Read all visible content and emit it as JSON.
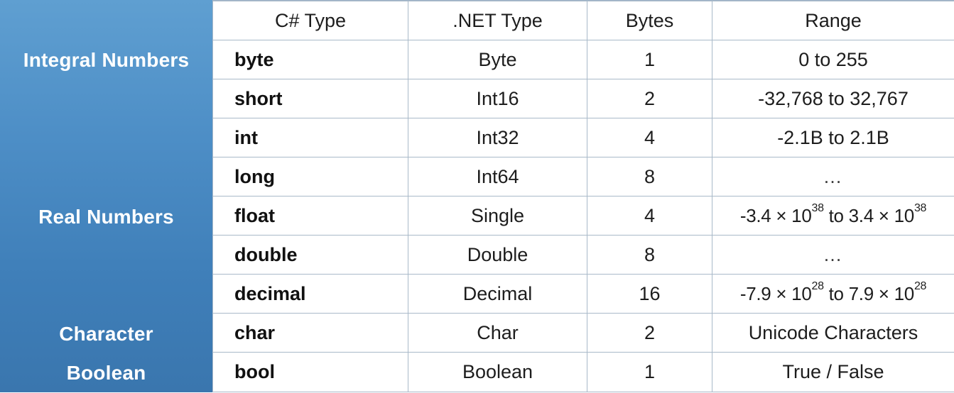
{
  "sidebar": {
    "integral": "Integral Numbers",
    "real": "Real Numbers",
    "character": "Character",
    "boolean": "Boolean"
  },
  "headers": {
    "csharp": "C# Type",
    "dotnet": ".NET Type",
    "bytes": "Bytes",
    "range": "Range"
  },
  "rows": [
    {
      "csharp": "byte",
      "dotnet": "Byte",
      "bytes": "1",
      "range": "0 to 255"
    },
    {
      "csharp": "short",
      "dotnet": "Int16",
      "bytes": "2",
      "range": "-32,768 to 32,767"
    },
    {
      "csharp": "int",
      "dotnet": "Int32",
      "bytes": "4",
      "range": "-2.1B to 2.1B"
    },
    {
      "csharp": "long",
      "dotnet": "Int64",
      "bytes": "8",
      "range": "…"
    },
    {
      "csharp": "float",
      "dotnet": "Single",
      "bytes": "4",
      "range_parts": {
        "a": "-3.4 × 10",
        "a_exp": "38",
        "b": " to 3.4 × 10",
        "b_exp": "38"
      }
    },
    {
      "csharp": "double",
      "dotnet": "Double",
      "bytes": "8",
      "range": "…"
    },
    {
      "csharp": "decimal",
      "dotnet": "Decimal",
      "bytes": "16",
      "range_parts": {
        "a": "-7.9 × 10",
        "a_exp": "28",
        "b": " to 7.9 × 10",
        "b_exp": "28"
      }
    },
    {
      "csharp": "char",
      "dotnet": "Char",
      "bytes": "2",
      "range": "Unicode Characters"
    },
    {
      "csharp": "bool",
      "dotnet": "Boolean",
      "bytes": "1",
      "range": "True / False"
    }
  ],
  "colors": {
    "sidebar_top": "#5f9fd1",
    "sidebar_bottom": "#3a76ae",
    "grid_line": "#a9b9c9",
    "text": "#1d1d1d"
  }
}
